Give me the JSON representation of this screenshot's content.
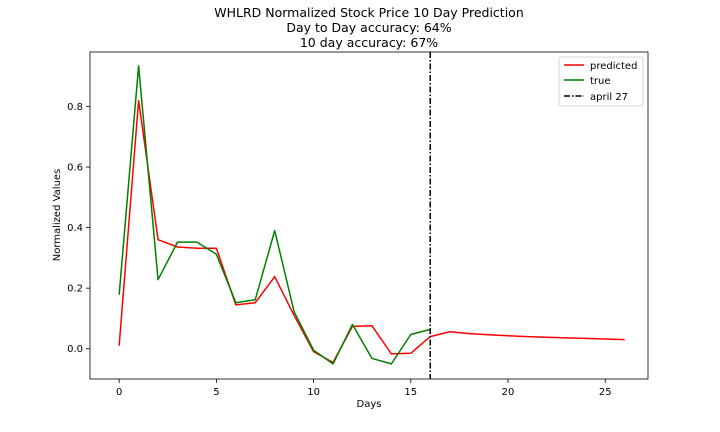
{
  "chart_data": {
    "type": "line",
    "title_lines": [
      "WHLRD Normalized Stock Price 10 Day Prediction",
      "Day to Day accuracy: 64%",
      "10 day accuracy: 67%"
    ],
    "xlabel": "Days",
    "ylabel": "Normalized Values",
    "xlim": [
      -1.5,
      27.2
    ],
    "ylim": [
      -0.1,
      0.98
    ],
    "xticks": [
      0,
      5,
      10,
      15,
      20,
      25
    ],
    "xtick_labels": [
      "0",
      "5",
      "10",
      "15",
      "20",
      "25"
    ],
    "yticks": [
      0.0,
      0.2,
      0.4,
      0.6,
      0.8
    ],
    "ytick_labels": [
      "0.0",
      "0.2",
      "0.4",
      "0.6",
      "0.8"
    ],
    "grid": false,
    "legend_position": "top-right",
    "series": [
      {
        "name": "predicted",
        "color": "#ff0000",
        "x": [
          0,
          1,
          2,
          3,
          4,
          5,
          6,
          7,
          8,
          9,
          10,
          11,
          12,
          13,
          14,
          15,
          16,
          17,
          18,
          19,
          20,
          21,
          22,
          23,
          24,
          25,
          26
        ],
        "values": [
          0.01,
          0.82,
          0.36,
          0.336,
          0.332,
          0.332,
          0.145,
          0.152,
          0.238,
          0.11,
          -0.01,
          -0.045,
          0.074,
          0.076,
          -0.017,
          -0.015,
          0.04,
          0.056,
          0.05,
          0.046,
          0.043,
          0.04,
          0.038,
          0.036,
          0.034,
          0.032,
          0.03
        ]
      },
      {
        "name": "true",
        "color": "#008000",
        "x": [
          0,
          1,
          2,
          3,
          4,
          5,
          6,
          7,
          8,
          9,
          10,
          11,
          12,
          13,
          14,
          15,
          16
        ],
        "values": [
          0.178,
          0.934,
          0.228,
          0.352,
          0.352,
          0.312,
          0.152,
          0.162,
          0.39,
          0.122,
          -0.005,
          -0.05,
          0.08,
          -0.032,
          -0.05,
          0.047,
          0.064
        ]
      }
    ],
    "vline": {
      "name": "april 27",
      "x": 16,
      "color": "#000000",
      "style": "dash-dot"
    }
  }
}
